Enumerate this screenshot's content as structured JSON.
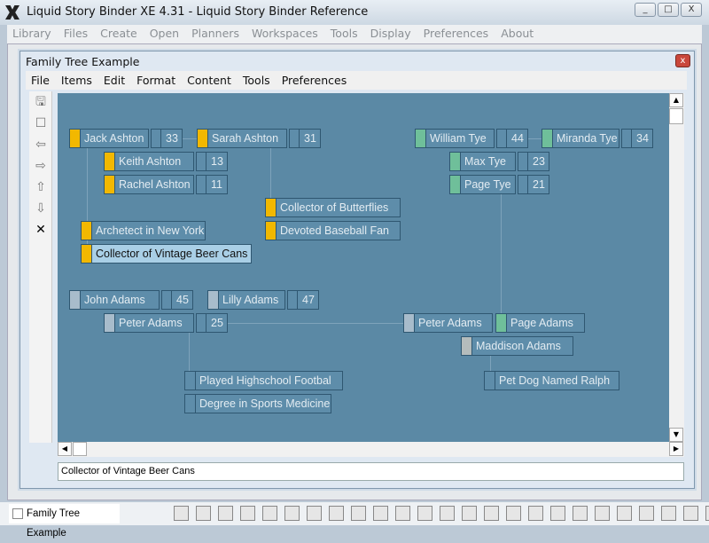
{
  "app": {
    "title": "Liquid Story Binder XE 4.31 - Liquid Story Binder Reference",
    "window_buttons": [
      "_",
      "□",
      "X"
    ]
  },
  "menu": [
    "Library",
    "Files",
    "Create",
    "Open",
    "Planners",
    "Workspaces",
    "Tools",
    "Display",
    "Preferences",
    "About"
  ],
  "child": {
    "title": "Family Tree Example",
    "close": "x",
    "menu": [
      "File",
      "Items",
      "Edit",
      "Format",
      "Content",
      "Tools",
      "Preferences"
    ]
  },
  "tools": [
    {
      "icon": "save-icon",
      "glyph": "🖫"
    },
    {
      "icon": "square-icon",
      "glyph": "☐"
    },
    {
      "icon": "arrow-left-icon",
      "glyph": "⇦"
    },
    {
      "icon": "arrow-right-icon",
      "glyph": "⇨"
    },
    {
      "icon": "arrow-up-icon",
      "glyph": "⇧"
    },
    {
      "icon": "arrow-down-icon",
      "glyph": "⇩"
    },
    {
      "icon": "delete-icon",
      "glyph": "✕"
    }
  ],
  "colors": {
    "canvas": "#5b89a5",
    "yellow": "#f2b800",
    "teal": "#6fbf9a",
    "light": "#a8bccb",
    "gray": "#b4bcbc",
    "selected": "#a9cfe6"
  },
  "nodes": [
    {
      "label": "Jack Ashton",
      "age": "33",
      "tag": "yellow"
    },
    {
      "label": "Sarah Ashton",
      "age": "31",
      "tag": "yellow"
    },
    {
      "label": "William Tye",
      "age": "44",
      "tag": "teal"
    },
    {
      "label": "Miranda Tye",
      "age": "34",
      "tag": "teal"
    },
    {
      "label": "Keith Ashton",
      "age": "13",
      "tag": "yellow"
    },
    {
      "label": "Rachel Ashton",
      "age": "11",
      "tag": "yellow"
    },
    {
      "label": "Max Tye",
      "age": "23",
      "tag": "teal"
    },
    {
      "label": "Page Tye",
      "age": "21",
      "tag": "teal"
    },
    {
      "label": "Collector of Butterflies",
      "tag": "yellow"
    },
    {
      "label": "Devoted Baseball Fan",
      "tag": "yellow"
    },
    {
      "label": "Archetect in New York",
      "tag": "yellow"
    },
    {
      "label": "Collector of Vintage Beer Cans",
      "tag": "yellow",
      "selected": true
    },
    {
      "label": "John Adams",
      "age": "45",
      "tag": "light"
    },
    {
      "label": "Lilly Adams",
      "age": "47",
      "tag": "light"
    },
    {
      "label": "Peter Adams",
      "age": "25",
      "tag": "light"
    },
    {
      "label": "Peter Adams",
      "tag": "light"
    },
    {
      "label": "Page Adams",
      "tag": "teal"
    },
    {
      "label": "Maddison Adams",
      "tag": "gray"
    },
    {
      "label": "Played Highschool Footbal",
      "tag": "none"
    },
    {
      "label": "Degree in Sports Medicine",
      "tag": "none"
    },
    {
      "label": "Pet Dog Named Ralph",
      "tag": "none"
    }
  ],
  "status_text": "Collector of Vintage Beer Cans",
  "taskbar": {
    "item": "Family Tree Example"
  }
}
